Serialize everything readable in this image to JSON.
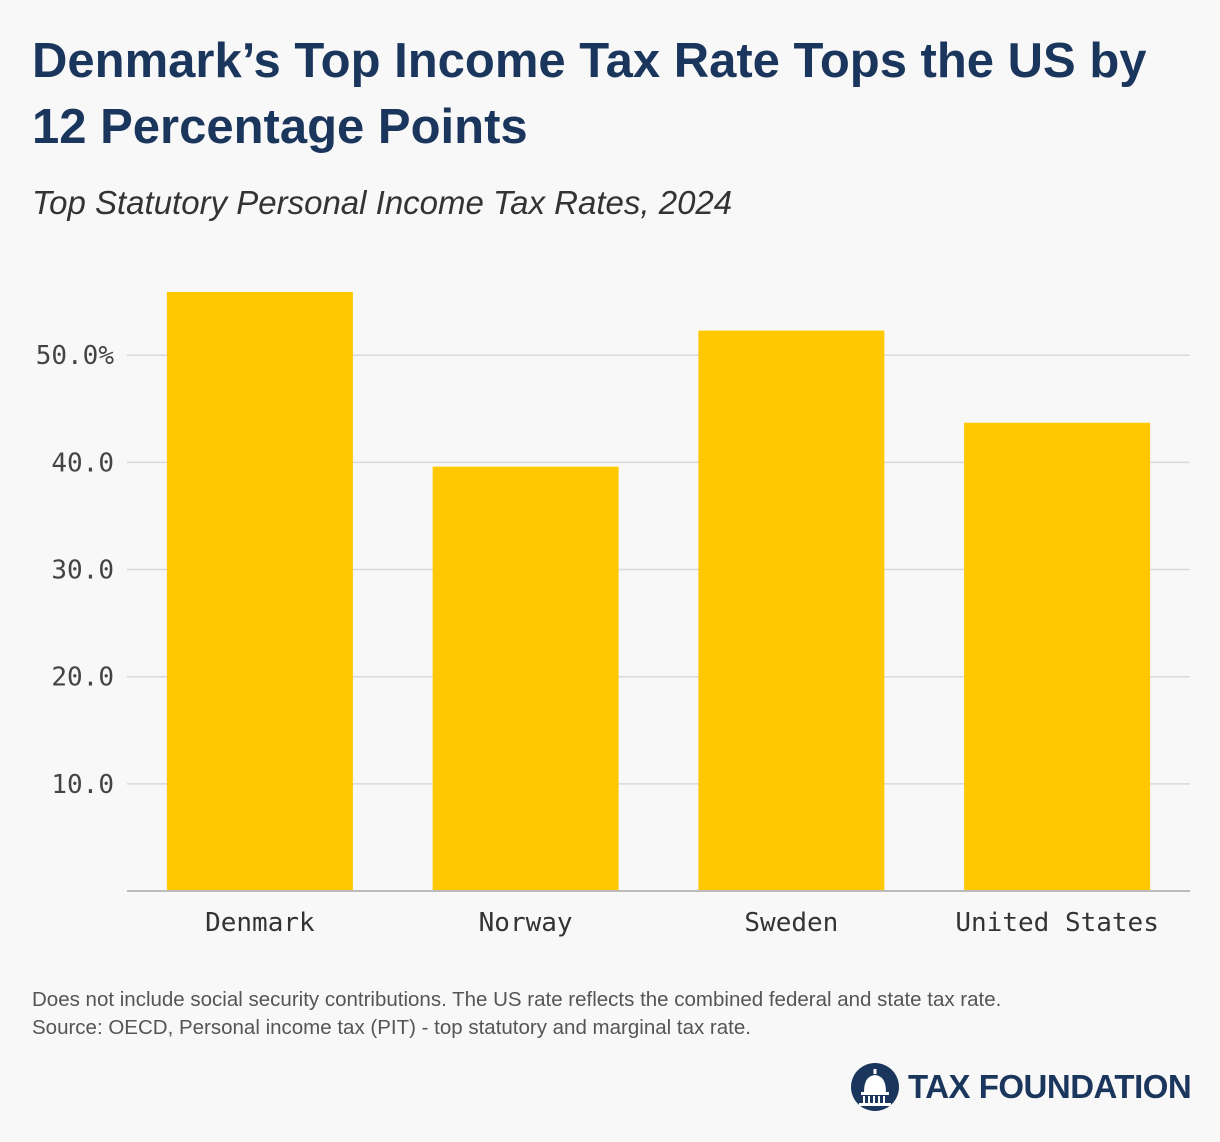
{
  "header": {
    "title": "Denmark’s Top Income Tax Rate Tops the US by 12 Percentage Points",
    "subtitle": "Top Statutory Personal Income Tax Rates, 2024"
  },
  "footer": {
    "note": "Does not include social security contributions. The US rate reflects the combined federal and state tax rate.",
    "source": "Source: OECD, Personal income tax (PIT) - top statutory and marginal tax rate.",
    "logo_text": "TAX FOUNDATION"
  },
  "colors": {
    "bar": "#ffc800",
    "grid": "#d9d9d9",
    "axis": "#bbbbbb",
    "title": "#1b365d"
  },
  "chart_data": {
    "type": "bar",
    "categories": [
      "Denmark",
      "Norway",
      "Sweden",
      "United States"
    ],
    "values": [
      55.9,
      39.6,
      52.3,
      43.7
    ],
    "ylim": [
      0,
      55.9
    ],
    "yticks": [
      10,
      20,
      30,
      40,
      50
    ],
    "ytick_labels": [
      "10.0",
      "20.0",
      "30.0",
      "40.0",
      "50.0%"
    ],
    "grid": true,
    "legend": "none"
  }
}
